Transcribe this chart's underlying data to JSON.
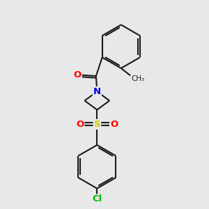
{
  "bg_color": "#e8e8e8",
  "bond_color": "#1a1a1a",
  "bond_width": 1.5,
  "atom_colors": {
    "O": "#ff0000",
    "N": "#0000ee",
    "S": "#cccc00",
    "Cl": "#00bb00",
    "C": "#1a1a1a"
  },
  "font_size_atom": 9.5,
  "dbo": 0.08,
  "dboi": 0.065,
  "figsize": [
    3.0,
    3.0
  ],
  "dpi": 100,
  "xlim": [
    0,
    10
  ],
  "ylim": [
    0,
    10
  ]
}
